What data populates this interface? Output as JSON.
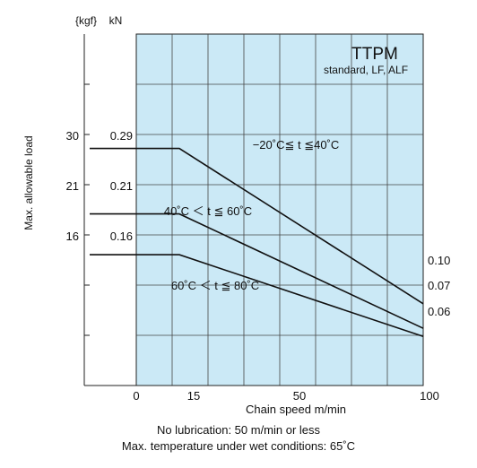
{
  "chart_data": {
    "type": "line",
    "title": "TTPM",
    "subtitle": "standard, LF, ALF",
    "xlabel": "Chain speed m/min",
    "ylabel": "Max. allowable load",
    "xlim": [
      0,
      100
    ],
    "ylim": [
      0,
      0.43
    ],
    "x_ticks": [
      "0",
      "15",
      "50",
      "100"
    ],
    "y_unit_left": "{kgf}",
    "y_unit_right": "kN",
    "y_ticks_kn": [
      "0.29",
      "0.21",
      "0.16"
    ],
    "y_ticks_kgf": [
      "30",
      "21",
      "16"
    ],
    "grid": true,
    "series": [
      {
        "name": "−20˚C≦ t ≦40˚C",
        "x": [
          0,
          15,
          100
        ],
        "y": [
          0.29,
          0.29,
          0.1
        ],
        "end_label": "0.10"
      },
      {
        "name": "40˚C ＜ t ≦ 60˚C",
        "x": [
          0,
          15,
          100
        ],
        "y": [
          0.21,
          0.21,
          0.07
        ],
        "end_label": "0.07"
      },
      {
        "name": "60˚C ＜ t ≦ 80˚C",
        "x": [
          0,
          15,
          100
        ],
        "y": [
          0.16,
          0.16,
          0.06
        ],
        "end_label": "0.06"
      }
    ]
  },
  "notes": {
    "line1": "No lubrication: 50 m/min or less",
    "line2": "Max. temperature under wet conditions: 65˚C"
  }
}
